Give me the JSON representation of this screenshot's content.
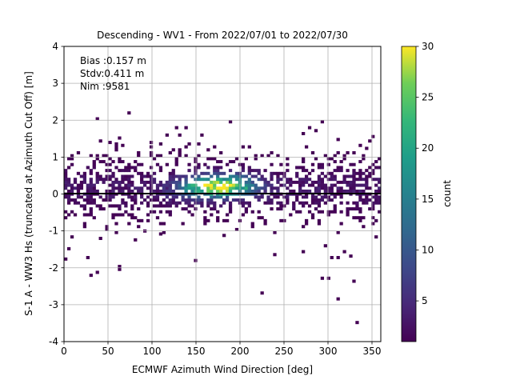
{
  "chart_data": {
    "type": "heatmap",
    "title": "Descending - WV1 - From 2022/07/01 to 2022/07/30",
    "xlabel": "ECMWF Azimuth Wind Direction [deg]",
    "ylabel": "S-1 A - WW3 Hs (truncated at Azimuth Cut Off) [m]",
    "xlim": [
      0,
      360
    ],
    "ylim": [
      -4,
      4
    ],
    "xticks": [
      0,
      50,
      100,
      150,
      200,
      250,
      300,
      350
    ],
    "yticks": [
      -4,
      -3,
      -2,
      -1,
      0,
      1,
      2,
      3,
      4
    ],
    "grid": true,
    "bin_width_deg": 3.6,
    "bin_height_m": 0.08,
    "stats": [
      "Bias :0.157 m",
      "Stdv:0.411 m",
      "Nim :9581"
    ],
    "reference_line_y": 0,
    "colorbar": {
      "label": "count",
      "colormap": "viridis",
      "range": [
        1,
        30
      ],
      "ticks": [
        5,
        10,
        15,
        20,
        25,
        30
      ]
    },
    "density_model": {
      "core_band": {
        "y_min": -0.65,
        "y_max": 1.05
      },
      "hotspot": {
        "x": 185,
        "y": 0.22,
        "peak_count": 30
      },
      "secondary_hotspot": {
        "x": 150,
        "y": 0.18,
        "peak_count": 14
      }
    },
    "sparse_points": [
      [
        38,
        2.07
      ],
      [
        75,
        2.2
      ],
      [
        62,
        -1.97
      ],
      [
        62,
        -2.04
      ],
      [
        30,
        -2.17
      ],
      [
        36,
        -2.1
      ],
      [
        148,
        -1.84
      ],
      [
        225,
        -2.7
      ],
      [
        293,
        -2.32
      ],
      [
        300,
        -2.32
      ],
      [
        312,
        -2.85
      ],
      [
        332,
        -3.45
      ],
      [
        330,
        -2.37
      ],
      [
        5,
        -1.52
      ],
      [
        10,
        -1.2
      ],
      [
        27,
        -1.72
      ],
      [
        128,
        1.8
      ],
      [
        138,
        1.82
      ],
      [
        190,
        1.93
      ],
      [
        272,
        1.63
      ],
      [
        280,
        1.82
      ],
      [
        294,
        1.97
      ],
      [
        310,
        1.45
      ],
      [
        285,
        1.73
      ],
      [
        320,
        -1.6
      ],
      [
        312,
        -1.7
      ],
      [
        355,
        -1.12
      ],
      [
        240,
        -1.62
      ],
      [
        350,
        1.52
      ],
      [
        335,
        1.35
      ],
      [
        345,
        1.2
      ],
      [
        100,
        1.4
      ],
      [
        90,
        -1.02
      ],
      [
        53,
        1.4
      ],
      [
        68,
        1.32
      ],
      [
        82,
        -1.27
      ],
      [
        270,
        -1.6
      ],
      [
        305,
        -1.75
      ],
      [
        297,
        -1.4
      ],
      [
        110,
        -1.07
      ]
    ]
  }
}
